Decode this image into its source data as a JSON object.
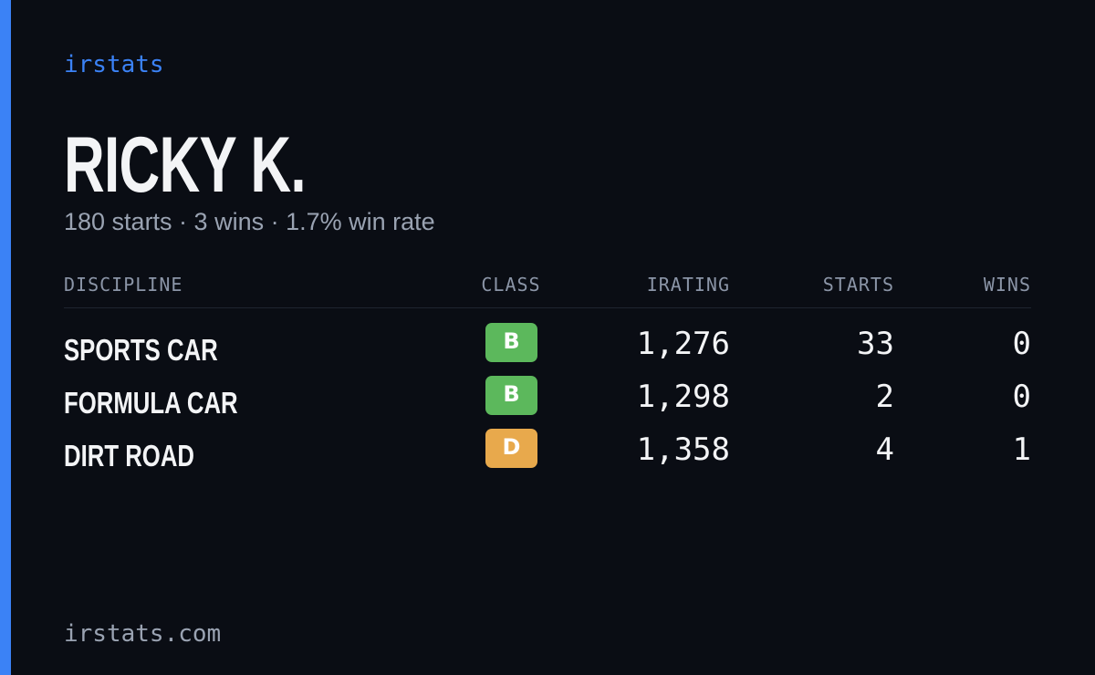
{
  "brand": "irstats",
  "name": "RICKY K.",
  "summary": "180 starts · 3 wins · 1.7% win rate",
  "table": {
    "headers": [
      "DISCIPLINE",
      "CLASS",
      "IRATING",
      "STARTS",
      "WINS"
    ],
    "rows": [
      {
        "discipline": "SPORTS CAR",
        "class": "B",
        "class_color": "#5cb85c",
        "irating": "1,276",
        "starts": "33",
        "wins": "0"
      },
      {
        "discipline": "FORMULA CAR",
        "class": "B",
        "class_color": "#5cb85c",
        "irating": "1,298",
        "starts": "2",
        "wins": "0"
      },
      {
        "discipline": "DIRT ROAD",
        "class": "D",
        "class_color": "#e8a94c",
        "irating": "1,358",
        "starts": "4",
        "wins": "1"
      }
    ]
  },
  "footer": "irstats.com"
}
